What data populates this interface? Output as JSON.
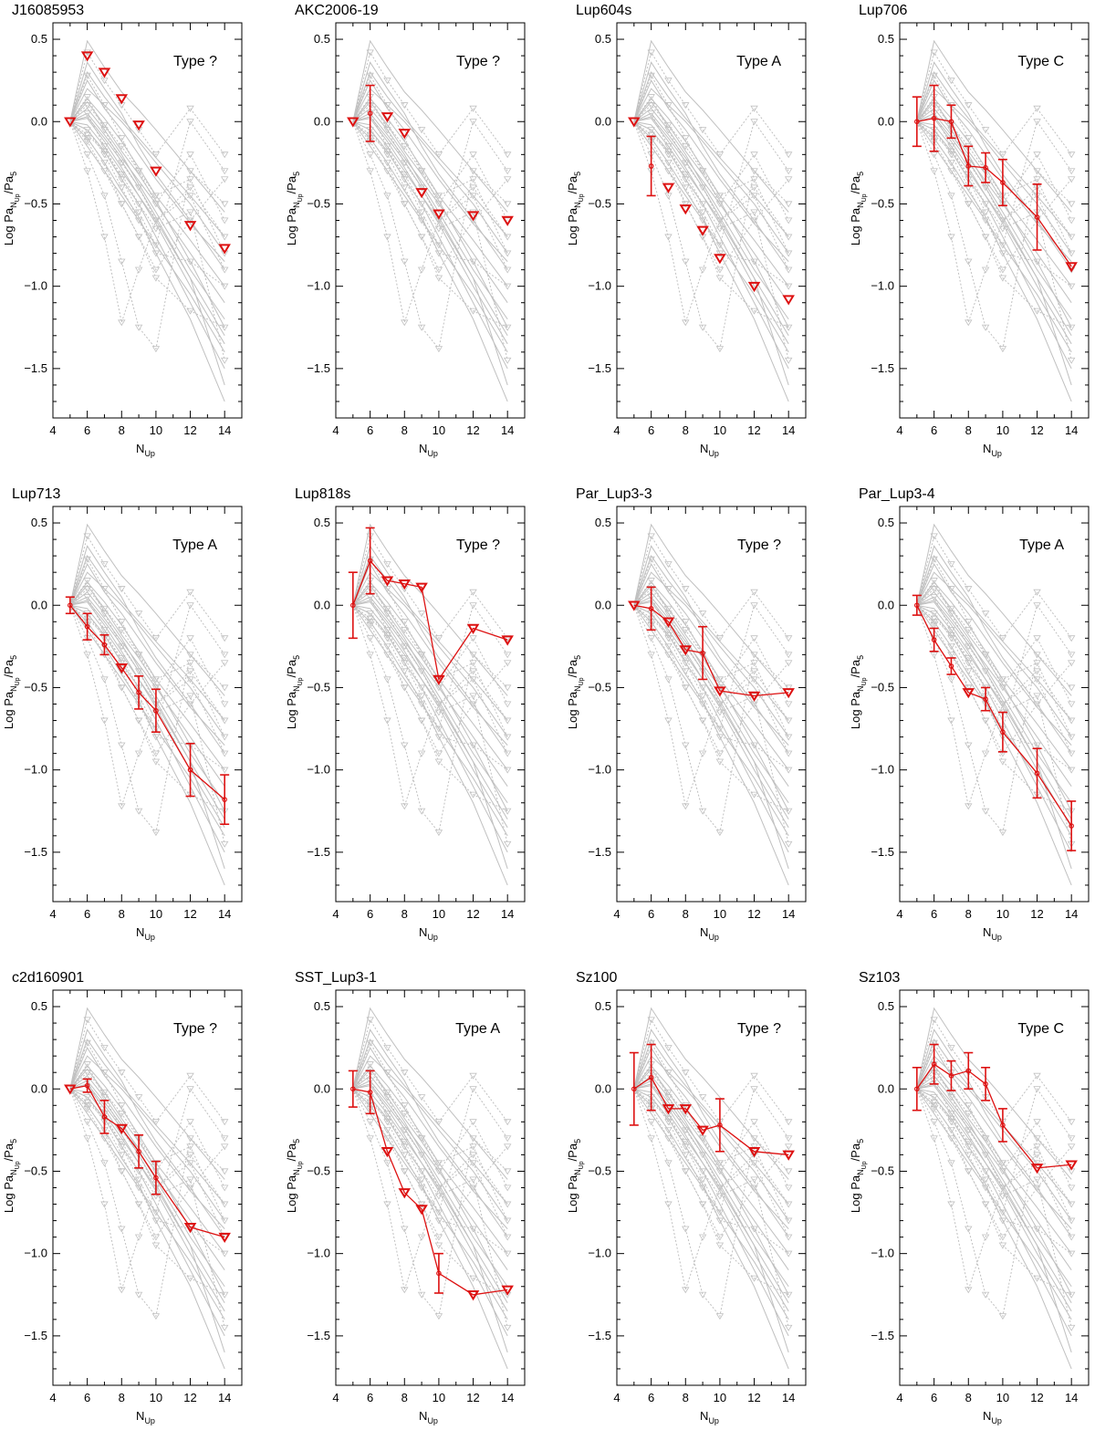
{
  "figure": {
    "x_axis_label": "N",
    "x_axis_label_sub": "Up",
    "y_axis_label": "Log Pa",
    "y_axis_label_sub": "N",
    "y_axis_label_subsub": "Up",
    "y_axis_label_tail": "/Pa",
    "y_axis_label_tail_sub": "5"
  },
  "colors": {
    "target": "#dd1111",
    "background": "#c0c0c0",
    "axis": "#000000"
  },
  "chart_data": [
    {
      "type": "line",
      "title": "J16085953",
      "annotation": "Type ?",
      "xlim": [
        4,
        15
      ],
      "ylim": [
        -1.8,
        0.6
      ],
      "xticks": [
        4,
        6,
        8,
        10,
        12,
        14
      ],
      "yticks": [
        0.5,
        0.0,
        -0.5,
        -1.0,
        -1.5
      ],
      "series": [
        {
          "x": [
            5,
            6,
            7,
            8,
            9,
            10,
            12,
            14
          ],
          "y": [
            0.0,
            0.4,
            0.3,
            0.14,
            -0.02,
            -0.3,
            -0.63,
            -0.77
          ],
          "upper_limit": [
            true,
            true,
            true,
            true,
            true,
            true,
            true,
            true
          ],
          "err": [
            0,
            0,
            0,
            0,
            0,
            0,
            0,
            0
          ],
          "connected": false
        }
      ]
    },
    {
      "type": "line",
      "title": "AKC2006-19",
      "annotation": "Type ?",
      "xlim": [
        4,
        15
      ],
      "ylim": [
        -1.8,
        0.6
      ],
      "xticks": [
        4,
        6,
        8,
        10,
        12,
        14
      ],
      "yticks": [
        0.5,
        0.0,
        -0.5,
        -1.0,
        -1.5
      ],
      "series": [
        {
          "x": [
            5,
            6,
            7,
            8,
            9,
            10,
            12,
            14
          ],
          "y": [
            0.0,
            0.05,
            0.03,
            -0.07,
            -0.43,
            -0.56,
            -0.57,
            -0.6
          ],
          "upper_limit": [
            true,
            false,
            true,
            true,
            true,
            true,
            true,
            true
          ],
          "err": [
            0,
            0.17,
            0,
            0,
            0,
            0,
            0,
            0
          ],
          "connected": false
        }
      ]
    },
    {
      "type": "line",
      "title": "Lup604s",
      "annotation": "Type A",
      "xlim": [
        4,
        15
      ],
      "ylim": [
        -1.8,
        0.6
      ],
      "xticks": [
        4,
        6,
        8,
        10,
        12,
        14
      ],
      "yticks": [
        0.5,
        0.0,
        -0.5,
        -1.0,
        -1.5
      ],
      "series": [
        {
          "x": [
            5,
            6,
            7,
            8,
            9,
            10,
            12,
            14
          ],
          "y": [
            0.0,
            -0.27,
            -0.4,
            -0.53,
            -0.66,
            -0.83,
            -1.0,
            -1.08
          ],
          "upper_limit": [
            true,
            false,
            true,
            true,
            true,
            true,
            true,
            true
          ],
          "err": [
            0,
            0.18,
            0,
            0,
            0,
            0,
            0,
            0
          ],
          "connected": false
        }
      ]
    },
    {
      "type": "line",
      "title": "Lup706",
      "annotation": "Type C",
      "xlim": [
        4,
        15
      ],
      "ylim": [
        -1.8,
        0.6
      ],
      "xticks": [
        4,
        6,
        8,
        10,
        12,
        14
      ],
      "yticks": [
        0.5,
        0.0,
        -0.5,
        -1.0,
        -1.5
      ],
      "series": [
        {
          "x": [
            5,
            6,
            7,
            8,
            9,
            10,
            12,
            14
          ],
          "y": [
            0.0,
            0.02,
            0.0,
            -0.27,
            -0.28,
            -0.37,
            -0.58,
            -0.88
          ],
          "upper_limit": [
            false,
            false,
            false,
            false,
            false,
            false,
            false,
            true
          ],
          "err": [
            0.15,
            0.2,
            0.1,
            0.12,
            0.09,
            0.14,
            0.2,
            0
          ],
          "connected": true
        }
      ]
    },
    {
      "type": "line",
      "title": "Lup713",
      "annotation": "Type A",
      "xlim": [
        4,
        15
      ],
      "ylim": [
        -1.8,
        0.6
      ],
      "xticks": [
        4,
        6,
        8,
        10,
        12,
        14
      ],
      "yticks": [
        0.5,
        0.0,
        -0.5,
        -1.0,
        -1.5
      ],
      "series": [
        {
          "x": [
            5,
            6,
            7,
            8,
            9,
            10,
            12,
            14
          ],
          "y": [
            0.0,
            -0.13,
            -0.24,
            -0.38,
            -0.53,
            -0.64,
            -1.0,
            -1.18
          ],
          "upper_limit": [
            false,
            false,
            false,
            true,
            false,
            false,
            false,
            false
          ],
          "err": [
            0.05,
            0.08,
            0.06,
            0,
            0.1,
            0.13,
            0.16,
            0.15
          ],
          "connected": true
        }
      ]
    },
    {
      "type": "line",
      "title": "Lup818s",
      "annotation": "Type ?",
      "xlim": [
        4,
        15
      ],
      "ylim": [
        -1.8,
        0.6
      ],
      "xticks": [
        4,
        6,
        8,
        10,
        12,
        14
      ],
      "yticks": [
        0.5,
        0.0,
        -0.5,
        -1.0,
        -1.5
      ],
      "series": [
        {
          "x": [
            5,
            6,
            7,
            8,
            9,
            10,
            12,
            14
          ],
          "y": [
            0.0,
            0.27,
            0.15,
            0.13,
            0.11,
            -0.45,
            -0.14,
            -0.21
          ],
          "upper_limit": [
            false,
            false,
            true,
            true,
            true,
            true,
            true,
            true
          ],
          "err": [
            0.2,
            0.2,
            0,
            0,
            0,
            0,
            0,
            0
          ],
          "connected": true
        }
      ]
    },
    {
      "type": "line",
      "title": "Par_Lup3-3",
      "annotation": "Type ?",
      "xlim": [
        4,
        15
      ],
      "ylim": [
        -1.8,
        0.6
      ],
      "xticks": [
        4,
        6,
        8,
        10,
        12,
        14
      ],
      "yticks": [
        0.5,
        0.0,
        -0.5,
        -1.0,
        -1.5
      ],
      "series": [
        {
          "x": [
            5,
            6,
            7,
            8,
            9,
            10,
            12,
            14
          ],
          "y": [
            0.0,
            -0.02,
            -0.1,
            -0.27,
            -0.29,
            -0.52,
            -0.55,
            -0.53
          ],
          "upper_limit": [
            true,
            false,
            true,
            true,
            false,
            true,
            true,
            true
          ],
          "err": [
            0,
            0.13,
            0,
            0,
            0.16,
            0,
            0,
            0
          ],
          "connected": true
        }
      ]
    },
    {
      "type": "line",
      "title": "Par_Lup3-4",
      "annotation": "Type A",
      "xlim": [
        4,
        15
      ],
      "ylim": [
        -1.8,
        0.6
      ],
      "xticks": [
        4,
        6,
        8,
        10,
        12,
        14
      ],
      "yticks": [
        0.5,
        0.0,
        -0.5,
        -1.0,
        -1.5
      ],
      "series": [
        {
          "x": [
            5,
            6,
            7,
            8,
            9,
            10,
            12,
            14
          ],
          "y": [
            0.0,
            -0.21,
            -0.37,
            -0.53,
            -0.57,
            -0.77,
            -1.02,
            -1.34
          ],
          "upper_limit": [
            false,
            false,
            false,
            true,
            false,
            false,
            false,
            false
          ],
          "err": [
            0.06,
            0.07,
            0.05,
            0,
            0.07,
            0.12,
            0.15,
            0.15
          ],
          "connected": true
        }
      ]
    },
    {
      "type": "line",
      "title": "c2d160901",
      "annotation": "Type ?",
      "xlim": [
        4,
        15
      ],
      "ylim": [
        -1.8,
        0.6
      ],
      "xticks": [
        4,
        6,
        8,
        10,
        12,
        14
      ],
      "yticks": [
        0.5,
        0.0,
        -0.5,
        -1.0,
        -1.5
      ],
      "series": [
        {
          "x": [
            5,
            6,
            7,
            8,
            9,
            10,
            12,
            14
          ],
          "y": [
            0.0,
            0.02,
            -0.17,
            -0.24,
            -0.38,
            -0.54,
            -0.84,
            -0.9
          ],
          "upper_limit": [
            true,
            false,
            false,
            true,
            false,
            false,
            true,
            true
          ],
          "err": [
            0,
            0.04,
            0.1,
            0,
            0.1,
            0.1,
            0,
            0
          ],
          "connected": true
        }
      ]
    },
    {
      "type": "line",
      "title": "SST_Lup3-1",
      "annotation": "Type A",
      "xlim": [
        4,
        15
      ],
      "ylim": [
        -1.8,
        0.6
      ],
      "xticks": [
        4,
        6,
        8,
        10,
        12,
        14
      ],
      "yticks": [
        0.5,
        0.0,
        -0.5,
        -1.0,
        -1.5
      ],
      "series": [
        {
          "x": [
            5,
            6,
            7,
            8,
            9,
            10,
            12,
            14
          ],
          "y": [
            0.0,
            -0.02,
            -0.38,
            -0.63,
            -0.73,
            -1.12,
            -1.25,
            -1.22
          ],
          "upper_limit": [
            false,
            false,
            true,
            true,
            true,
            false,
            true,
            true
          ],
          "err": [
            0.11,
            0.13,
            0,
            0,
            0,
            0.12,
            0,
            0
          ],
          "connected": true
        }
      ]
    },
    {
      "type": "line",
      "title": "Sz100",
      "annotation": "Type ?",
      "xlim": [
        4,
        15
      ],
      "ylim": [
        -1.8,
        0.6
      ],
      "xticks": [
        4,
        6,
        8,
        10,
        12,
        14
      ],
      "yticks": [
        0.5,
        0.0,
        -0.5,
        -1.0,
        -1.5
      ],
      "series": [
        {
          "x": [
            5,
            6,
            7,
            8,
            9,
            10,
            12,
            14
          ],
          "y": [
            0.0,
            0.07,
            -0.12,
            -0.12,
            -0.25,
            -0.22,
            -0.38,
            -0.4
          ],
          "upper_limit": [
            false,
            false,
            true,
            true,
            true,
            false,
            true,
            true
          ],
          "err": [
            0.22,
            0.2,
            0,
            0,
            0,
            0.16,
            0,
            0
          ],
          "connected": true
        }
      ]
    },
    {
      "type": "line",
      "title": "Sz103",
      "annotation": "Type C",
      "xlim": [
        4,
        15
      ],
      "ylim": [
        -1.8,
        0.6
      ],
      "xticks": [
        4,
        6,
        8,
        10,
        12,
        14
      ],
      "yticks": [
        0.5,
        0.0,
        -0.5,
        -1.0,
        -1.5
      ],
      "series": [
        {
          "x": [
            5,
            6,
            7,
            8,
            9,
            10,
            12,
            14
          ],
          "y": [
            0.0,
            0.15,
            0.08,
            0.11,
            0.03,
            -0.22,
            -0.48,
            -0.46
          ],
          "upper_limit": [
            false,
            false,
            false,
            false,
            false,
            false,
            true,
            true
          ],
          "err": [
            0.13,
            0.12,
            0.09,
            0.11,
            0.1,
            0.1,
            0,
            0
          ],
          "connected": true
        }
      ]
    }
  ],
  "background_tracks": {
    "x": [
      5,
      6,
      7,
      8,
      9,
      10,
      12,
      14
    ],
    "solid": [
      [
        0,
        0.49,
        0.33,
        0.18,
        0.07,
        -0.05,
        -0.3,
        -0.55
      ],
      [
        0,
        0.25,
        0.08,
        -0.05,
        -0.2,
        -0.35,
        -0.62,
        -0.85
      ],
      [
        0,
        0.14,
        0.02,
        -0.12,
        -0.28,
        -0.45,
        -0.72,
        -1.0
      ],
      [
        0,
        0.08,
        -0.05,
        -0.2,
        -0.38,
        -0.55,
        -0.9,
        -1.2
      ],
      [
        0,
        0.02,
        -0.12,
        -0.28,
        -0.45,
        -0.62,
        -1.0,
        -1.35
      ],
      [
        0,
        -0.05,
        -0.18,
        -0.35,
        -0.5,
        -0.7,
        -1.1,
        -1.5
      ],
      [
        0,
        -0.1,
        -0.25,
        -0.42,
        -0.58,
        -0.8,
        -1.2,
        -1.7
      ],
      [
        0,
        0.2,
        0.1,
        0.0,
        -0.12,
        -0.25,
        -0.5,
        -0.8
      ],
      [
        0,
        0.3,
        0.15,
        0.02,
        -0.1,
        -0.22,
        -0.45,
        -0.7
      ],
      [
        0,
        -0.02,
        -0.15,
        -0.3,
        -0.45,
        -0.6,
        -0.95,
        -1.3
      ],
      [
        0,
        0.05,
        -0.08,
        -0.22,
        -0.36,
        -0.5,
        -0.8,
        -1.1
      ],
      [
        0,
        0.36,
        0.2,
        0.05,
        -0.15,
        -0.32,
        -0.6,
        -0.9
      ],
      [
        0,
        -0.15,
        -0.3,
        -0.45,
        -0.6,
        -0.75,
        -1.05,
        -1.4
      ],
      [
        0,
        0.12,
        -0.02,
        -0.18,
        -0.32,
        -0.48,
        -0.85,
        -1.25
      ],
      [
        0,
        0.03,
        -0.1,
        -0.24,
        -0.4,
        -0.58,
        -0.95,
        -1.6
      ]
    ],
    "dotted": [
      [
        0,
        0.42,
        0.25,
        0.1,
        -0.05,
        -0.2,
        0.08,
        -0.2
      ],
      [
        0,
        -0.3,
        -0.7,
        -1.22,
        -0.9,
        -0.6,
        -0.45,
        -0.9
      ],
      [
        0,
        -0.2,
        -0.45,
        -0.85,
        -1.25,
        -1.38,
        -0.3,
        -0.5
      ],
      [
        0,
        0.05,
        -0.15,
        -0.35,
        -0.55,
        -0.75,
        0.0,
        -0.3
      ],
      [
        0,
        -0.1,
        -0.25,
        -0.5,
        -0.7,
        -0.9,
        -0.6,
        -0.35
      ],
      [
        0,
        0.15,
        -0.05,
        -0.25,
        -0.4,
        -0.6,
        -0.4,
        -0.7
      ],
      [
        0,
        -0.05,
        -0.2,
        -0.4,
        -0.6,
        -0.8,
        -0.85,
        -1.0
      ],
      [
        0,
        0.28,
        0.1,
        -0.1,
        -0.3,
        -0.5,
        -0.2,
        -0.6
      ],
      [
        0,
        -0.12,
        -0.3,
        -0.5,
        -0.7,
        -0.95,
        -1.15,
        -1.25
      ],
      [
        0,
        0.1,
        -0.02,
        -0.15,
        -0.3,
        -0.45,
        -0.35,
        -0.8
      ],
      [
        0,
        -0.08,
        -0.18,
        -0.32,
        -0.5,
        -0.65,
        -0.55,
        -1.45
      ]
    ]
  }
}
